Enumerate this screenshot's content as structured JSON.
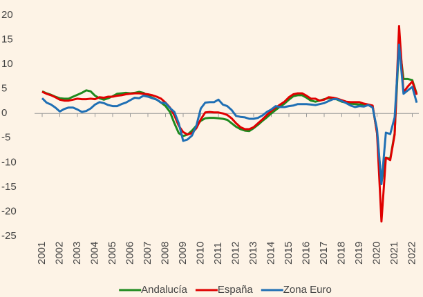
{
  "chart_data": {
    "type": "line",
    "categories": [
      "2001",
      null,
      null,
      null,
      "2002",
      null,
      null,
      null,
      "2003",
      null,
      null,
      null,
      "2004",
      null,
      null,
      null,
      "2005",
      null,
      null,
      null,
      "2006",
      null,
      null,
      null,
      "2007",
      null,
      null,
      null,
      "2008",
      null,
      null,
      null,
      "2009",
      null,
      null,
      null,
      "2010",
      null,
      null,
      null,
      "2011",
      null,
      null,
      null,
      "2012",
      null,
      null,
      null,
      "2013",
      null,
      null,
      null,
      "2014",
      null,
      null,
      null,
      "2015",
      null,
      null,
      null,
      "2016",
      null,
      null,
      null,
      "2017",
      null,
      null,
      null,
      "2018",
      null,
      null,
      null,
      "2019",
      null,
      null,
      null,
      "2020",
      null,
      null,
      null,
      "2021",
      null,
      null,
      null,
      "2022",
      null
    ],
    "series": [
      {
        "name": "Andalucía",
        "color": "#1e8a1e",
        "values": [
          4.5,
          4.1,
          3.8,
          3.4,
          3.1,
          3.0,
          3.0,
          3.4,
          3.8,
          4.2,
          4.7,
          4.5,
          3.6,
          3.1,
          2.8,
          3.1,
          3.5,
          4.0,
          4.1,
          4.2,
          4.1,
          4.2,
          4.4,
          4.2,
          3.6,
          3.2,
          2.8,
          2.2,
          1.5,
          0.3,
          -2.0,
          -4.0,
          -4.6,
          -4.3,
          -3.5,
          -2.5,
          -1.5,
          -1.0,
          -0.9,
          -0.9,
          -1.0,
          -1.1,
          -1.3,
          -2.0,
          -2.7,
          -3.2,
          -3.5,
          -3.6,
          -3.0,
          -2.3,
          -1.5,
          -0.8,
          0.0,
          0.7,
          1.4,
          2.0,
          2.8,
          3.5,
          3.7,
          3.7,
          3.2,
          2.6,
          2.4,
          2.6,
          2.9,
          3.1,
          3.2,
          2.8,
          2.4,
          2.2,
          2.0,
          1.9,
          1.8,
          1.8,
          1.7,
          1.5,
          -4.0,
          -14.0,
          -9.0,
          -9.2,
          -4.0,
          14.5,
          7.0,
          7.0,
          6.8,
          4.0
        ]
      },
      {
        "name": "España",
        "color": "#e00000",
        "values": [
          4.4,
          4.0,
          3.7,
          3.3,
          2.8,
          2.6,
          2.6,
          2.8,
          3.0,
          2.9,
          2.9,
          3.0,
          2.9,
          3.3,
          3.2,
          3.4,
          3.4,
          3.6,
          3.7,
          3.9,
          4.0,
          4.1,
          4.1,
          4.0,
          3.9,
          3.7,
          3.4,
          3.0,
          2.2,
          1.2,
          -0.4,
          -2.5,
          -3.8,
          -4.3,
          -4.0,
          -3.0,
          -1.2,
          0.2,
          0.3,
          0.2,
          0.2,
          0.0,
          -0.3,
          -1.0,
          -2.0,
          -2.8,
          -3.2,
          -3.2,
          -2.8,
          -2.0,
          -1.2,
          -0.3,
          0.5,
          1.2,
          1.8,
          2.4,
          3.3,
          3.9,
          4.1,
          4.1,
          3.6,
          3.0,
          3.0,
          2.6,
          2.8,
          3.3,
          3.2,
          3.0,
          2.7,
          2.4,
          2.3,
          2.3,
          2.3,
          2.0,
          1.8,
          1.6,
          -4.0,
          -22.0,
          -9.0,
          -9.5,
          -4.3,
          17.8,
          4.3,
          5.5,
          6.5,
          3.8
        ]
      },
      {
        "name": "Zona Euro",
        "color": "#1f6fb4",
        "values": [
          3.1,
          2.2,
          1.8,
          1.2,
          0.4,
          0.9,
          1.2,
          1.2,
          0.8,
          0.3,
          0.5,
          1.0,
          1.8,
          2.3,
          2.1,
          1.7,
          1.5,
          1.5,
          1.9,
          2.2,
          2.7,
          3.2,
          3.1,
          3.6,
          3.4,
          3.1,
          2.8,
          2.2,
          2.1,
          1.1,
          0.3,
          -2.0,
          -5.6,
          -5.3,
          -4.5,
          -2.5,
          1.0,
          2.2,
          2.3,
          2.3,
          2.8,
          1.8,
          1.5,
          0.7,
          -0.5,
          -0.7,
          -0.8,
          -1.1,
          -1.1,
          -0.9,
          -0.4,
          0.3,
          0.8,
          1.5,
          1.3,
          1.3,
          1.5,
          1.6,
          1.9,
          1.9,
          1.9,
          1.8,
          1.7,
          1.9,
          2.1,
          2.5,
          2.9,
          2.9,
          2.5,
          2.1,
          1.6,
          1.3,
          1.5,
          1.4,
          1.7,
          1.2,
          -3.2,
          -14.4,
          -3.9,
          -4.2,
          -0.8,
          14.0,
          4.0,
          4.7,
          5.4,
          2.2
        ]
      }
    ],
    "ylim": [
      -25,
      20
    ],
    "yticks": [
      -25,
      -20,
      -15,
      -10,
      -5,
      0,
      5,
      10,
      15,
      20
    ],
    "legend": "bottom"
  }
}
